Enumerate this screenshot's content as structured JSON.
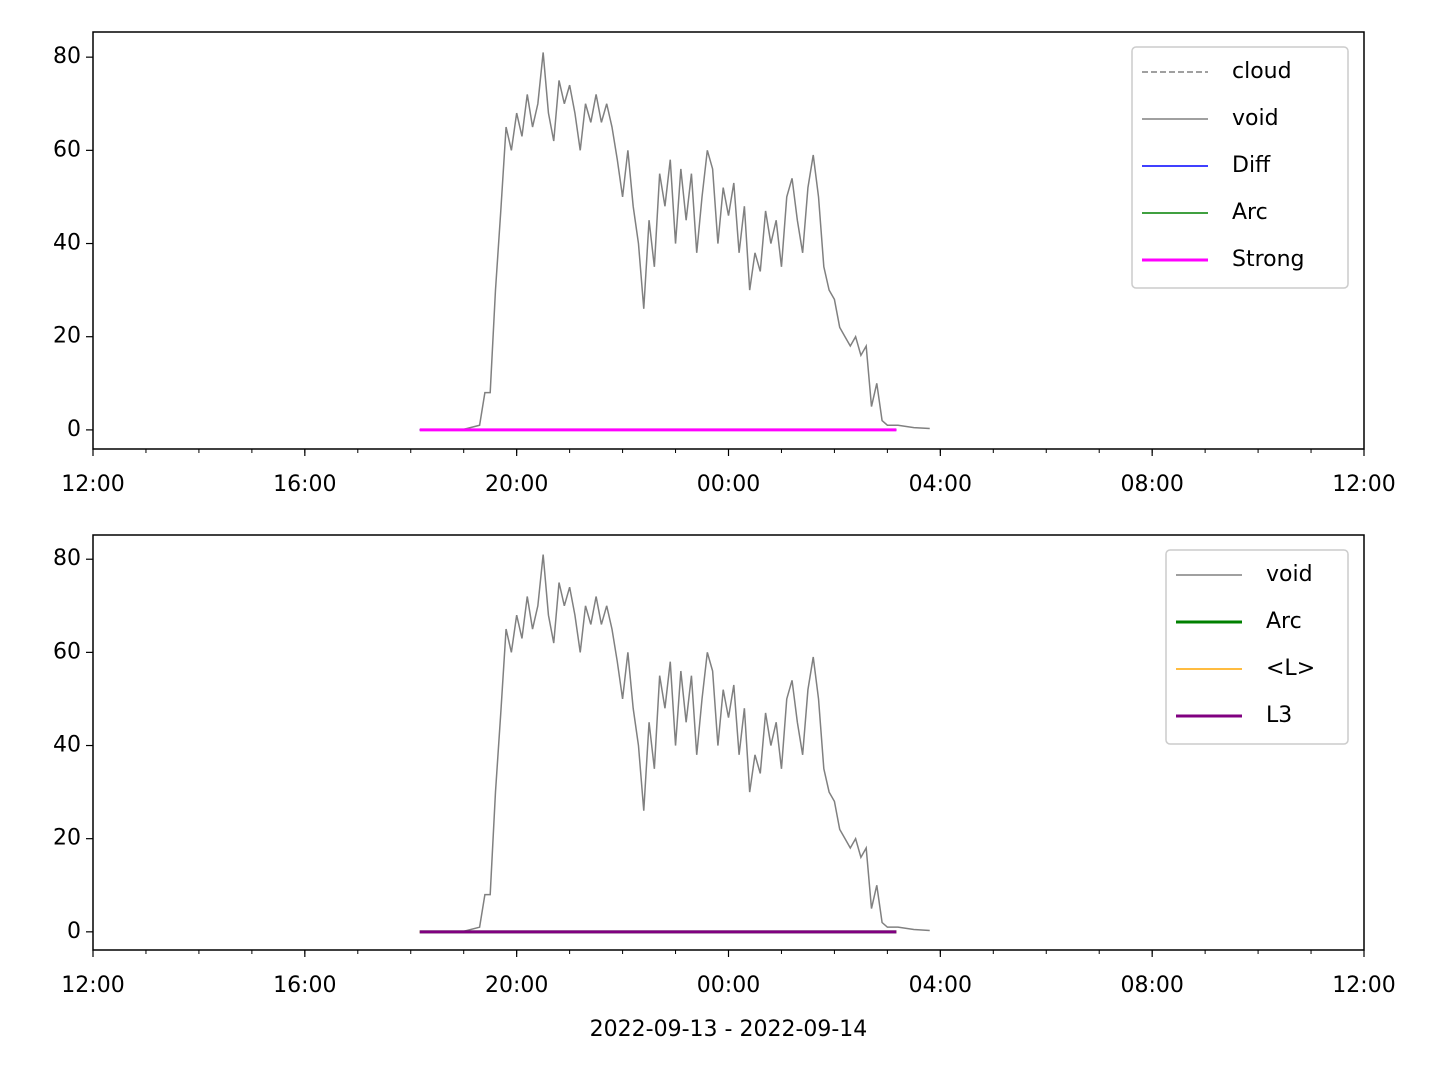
{
  "chart_data": [
    {
      "type": "line",
      "xlim": [
        0,
        24
      ],
      "ylim": [
        -4.1,
        85.4
      ],
      "xticks": [
        {
          "value": 0,
          "label": "12:00"
        },
        {
          "value": 4,
          "label": "16:00"
        },
        {
          "value": 8,
          "label": "20:00"
        },
        {
          "value": 12,
          "label": "00:00"
        },
        {
          "value": 16,
          "label": "04:00"
        },
        {
          "value": 20,
          "label": "08:00"
        },
        {
          "value": 24,
          "label": "12:00"
        }
      ],
      "yticks": [
        0,
        20,
        40,
        60,
        80
      ],
      "legend": "upper right",
      "series": [
        {
          "name": "cloud",
          "color": "#808080",
          "linewidth": 1.5,
          "linestyle": "dashed",
          "x": [
            6.17,
            15.17
          ],
          "values": [
            0,
            0
          ]
        },
        {
          "name": "void",
          "color": "#808080",
          "linewidth": 1.5,
          "linestyle": "solid",
          "x": [
            6.96,
            7.3,
            7.4,
            7.5,
            7.6,
            7.7,
            7.8,
            7.9,
            8.0,
            8.1,
            8.2,
            8.3,
            8.4,
            8.5,
            8.6,
            8.7,
            8.8,
            8.9,
            9.0,
            9.1,
            9.2,
            9.3,
            9.4,
            9.5,
            9.6,
            9.7,
            9.8,
            9.9,
            10.0,
            10.1,
            10.2,
            10.3,
            10.4,
            10.5,
            10.6,
            10.7,
            10.8,
            10.9,
            11.0,
            11.1,
            11.2,
            11.3,
            11.4,
            11.5,
            11.6,
            11.7,
            11.8,
            11.9,
            12.0,
            12.1,
            12.2,
            12.3,
            12.4,
            12.5,
            12.6,
            12.7,
            12.8,
            12.9,
            13.0,
            13.1,
            13.2,
            13.3,
            13.4,
            13.5,
            13.6,
            13.7,
            13.8,
            13.9,
            14.0,
            14.1,
            14.2,
            14.3,
            14.4,
            14.5,
            14.6,
            14.7,
            14.8,
            14.9,
            15.0,
            15.2,
            15.5,
            15.8
          ],
          "values": [
            0,
            1,
            8,
            8,
            30,
            47,
            65,
            60,
            68,
            63,
            72,
            65,
            70,
            81,
            68,
            62,
            75,
            70,
            74,
            68,
            60,
            70,
            66,
            72,
            66,
            70,
            65,
            58,
            50,
            60,
            48,
            40,
            26,
            45,
            35,
            55,
            48,
            58,
            40,
            56,
            45,
            55,
            38,
            50,
            60,
            56,
            40,
            52,
            46,
            53,
            38,
            48,
            30,
            38,
            34,
            47,
            40,
            45,
            35,
            50,
            54,
            45,
            38,
            52,
            59,
            50,
            35,
            30,
            28,
            22,
            20,
            18,
            20,
            16,
            18,
            5,
            10,
            2,
            1,
            1,
            0.5,
            0.3
          ]
        },
        {
          "name": "Diff",
          "color": "#0000ff",
          "linewidth": 1.5,
          "linestyle": "solid",
          "x": [
            6.17,
            15.17
          ],
          "values": [
            0,
            0
          ]
        },
        {
          "name": "Arc",
          "color": "#008000",
          "linewidth": 1.5,
          "linestyle": "solid",
          "x": [
            6.17,
            15.17
          ],
          "values": [
            0,
            0
          ]
        },
        {
          "name": "Strong",
          "color": "#ff00ff",
          "linewidth": 3,
          "linestyle": "solid",
          "x": [
            6.17,
            15.17
          ],
          "values": [
            0,
            0
          ]
        }
      ]
    },
    {
      "type": "line",
      "xlim": [
        0,
        24
      ],
      "ylim": [
        -3.9,
        85.2
      ],
      "xticks": [
        {
          "value": 0,
          "label": "12:00"
        },
        {
          "value": 4,
          "label": "16:00"
        },
        {
          "value": 8,
          "label": "20:00"
        },
        {
          "value": 12,
          "label": "00:00"
        },
        {
          "value": 16,
          "label": "04:00"
        },
        {
          "value": 20,
          "label": "08:00"
        },
        {
          "value": 24,
          "label": "12:00"
        }
      ],
      "yticks": [
        0,
        20,
        40,
        60,
        80
      ],
      "x_label": "2022-09-13 - 2022-09-14",
      "legend": "upper right",
      "series": [
        {
          "name": "void",
          "color": "#808080",
          "linewidth": 1.5,
          "linestyle": "solid",
          "x": [
            6.96,
            7.3,
            7.4,
            7.5,
            7.6,
            7.7,
            7.8,
            7.9,
            8.0,
            8.1,
            8.2,
            8.3,
            8.4,
            8.5,
            8.6,
            8.7,
            8.8,
            8.9,
            9.0,
            9.1,
            9.2,
            9.3,
            9.4,
            9.5,
            9.6,
            9.7,
            9.8,
            9.9,
            10.0,
            10.1,
            10.2,
            10.3,
            10.4,
            10.5,
            10.6,
            10.7,
            10.8,
            10.9,
            11.0,
            11.1,
            11.2,
            11.3,
            11.4,
            11.5,
            11.6,
            11.7,
            11.8,
            11.9,
            12.0,
            12.1,
            12.2,
            12.3,
            12.4,
            12.5,
            12.6,
            12.7,
            12.8,
            12.9,
            13.0,
            13.1,
            13.2,
            13.3,
            13.4,
            13.5,
            13.6,
            13.7,
            13.8,
            13.9,
            14.0,
            14.1,
            14.2,
            14.3,
            14.4,
            14.5,
            14.6,
            14.7,
            14.8,
            14.9,
            15.0,
            15.2,
            15.5,
            15.8
          ],
          "values": [
            0,
            1,
            8,
            8,
            30,
            47,
            65,
            60,
            68,
            63,
            72,
            65,
            70,
            81,
            68,
            62,
            75,
            70,
            74,
            68,
            60,
            70,
            66,
            72,
            66,
            70,
            65,
            58,
            50,
            60,
            48,
            40,
            26,
            45,
            35,
            55,
            48,
            58,
            40,
            56,
            45,
            55,
            38,
            50,
            60,
            56,
            40,
            52,
            46,
            53,
            38,
            48,
            30,
            38,
            34,
            47,
            40,
            45,
            35,
            50,
            54,
            45,
            38,
            52,
            59,
            50,
            35,
            30,
            28,
            22,
            20,
            18,
            20,
            16,
            18,
            5,
            10,
            2,
            1,
            1,
            0.5,
            0.3
          ]
        },
        {
          "name": "Arc",
          "color": "#008000",
          "linewidth": 3,
          "linestyle": "solid",
          "x": [
            6.17,
            15.17
          ],
          "values": [
            0,
            0
          ]
        },
        {
          "name": "<L>",
          "color": "#ffa500",
          "linewidth": 1.5,
          "linestyle": "solid",
          "x": [
            6.17,
            15.17
          ],
          "values": [
            0,
            0
          ]
        },
        {
          "name": "L3",
          "color": "#800080",
          "linewidth": 3,
          "linestyle": "solid",
          "x": [
            6.17,
            15.17
          ],
          "values": [
            0,
            0
          ]
        }
      ]
    }
  ]
}
